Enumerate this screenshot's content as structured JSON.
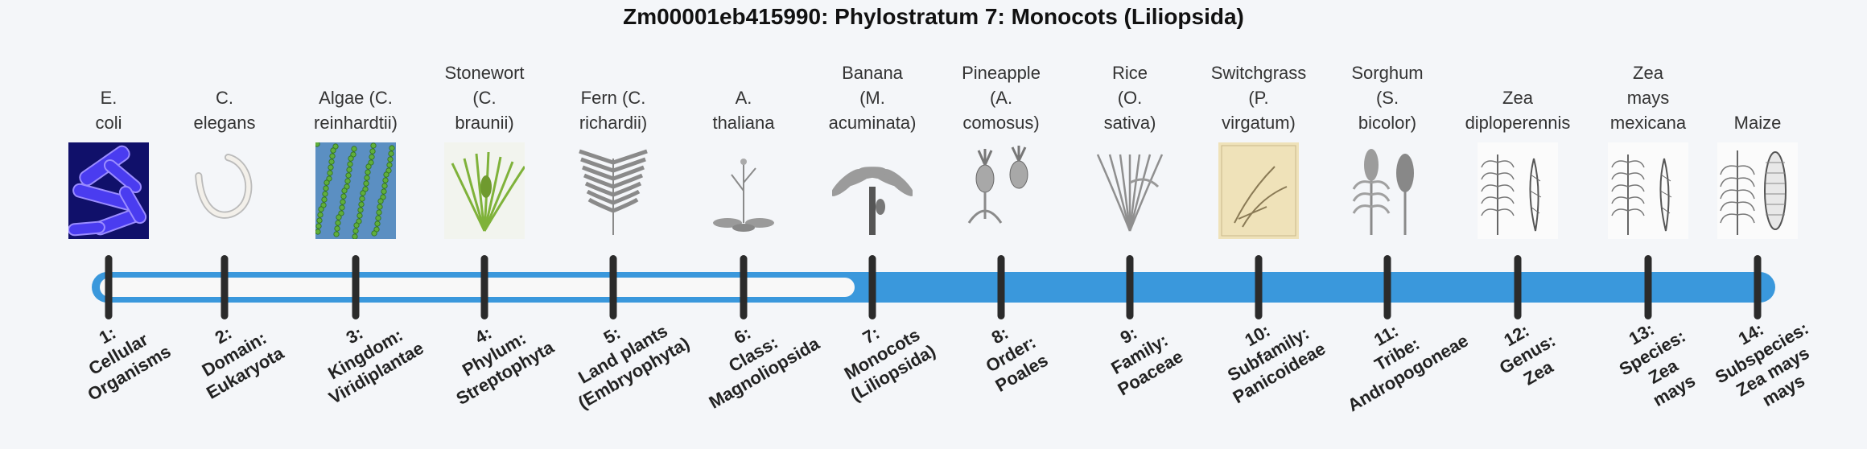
{
  "title": "Zm00001eb415990: Phylostratum 7: Monocots (Liliopsida)",
  "colors": {
    "track": "#3a98dc",
    "hollow": "#f8f8f8",
    "tick": "#2b2b2b"
  },
  "strata": [
    {
      "organism": "E.\ncoli",
      "label": "1:\nCellular\nOrganisms",
      "image_icon": "bacteria-icon"
    },
    {
      "organism": "C.\nelegans",
      "label": "2:\nDomain:\nEukaryota",
      "image_icon": "worm-icon"
    },
    {
      "organism": "Algae (C.\nreinhardtii)",
      "label": "3:\nKingdom:\nViridiplantae",
      "image_icon": "algae-icon"
    },
    {
      "organism": "Stonewort\n(C.\nbraunii)",
      "label": "4:\nPhylum:\nStreptophyta",
      "image_icon": "stonewort-icon"
    },
    {
      "organism": "Fern (C.\nrichardii)",
      "label": "5:\nLand plants\n(Embryophyta)",
      "image_icon": "fern-icon"
    },
    {
      "organism": "A.\nthaliana",
      "label": "6:\nClass:\nMagnoliopsida",
      "image_icon": "arabidopsis-icon"
    },
    {
      "organism": "Banana\n(M.\nacuminata)",
      "label": "7:\nMonocots\n(Liliopsida)",
      "image_icon": "banana-plant-icon"
    },
    {
      "organism": "Pineapple\n(A.\ncomosus)",
      "label": "8:\nOrder:\nPoales",
      "image_icon": "pineapple-icon"
    },
    {
      "organism": "Rice\n(O.\nsativa)",
      "label": "9:\nFamily:\nPoaceae",
      "image_icon": "rice-icon"
    },
    {
      "organism": "Switchgrass\n(P.\nvirgatum)",
      "label": "10:\nSubfamily:\nPanicoideae",
      "image_icon": "switchgrass-icon"
    },
    {
      "organism": "Sorghum\n(S.\nbicolor)",
      "label": "11:\nTribe:\nAndropogoneae",
      "image_icon": "sorghum-icon"
    },
    {
      "organism": "Zea\ndiploperennis",
      "label": "12:\nGenus:\nZea",
      "image_icon": "teosinte-icon"
    },
    {
      "organism": "Zea\nmays\nmexicana",
      "label": "13:\nSpecies:\nZea\nmays",
      "image_icon": "teosinte-mexicana-icon"
    },
    {
      "organism": "Maize",
      "label": "14:\nSubspecies:\nZea mays\nmays",
      "image_icon": "maize-icon"
    }
  ]
}
